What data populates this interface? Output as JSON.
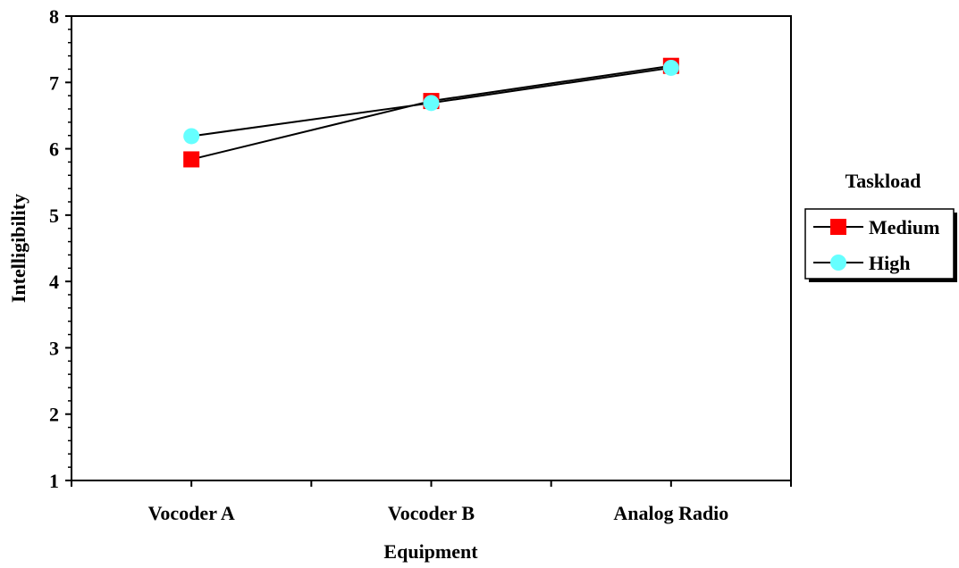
{
  "chart_data": {
    "type": "line",
    "xlabel": "Equipment",
    "ylabel": "Intelligibility",
    "ylim": [
      1,
      8
    ],
    "yticks": [
      "1",
      "2",
      "3",
      "4",
      "5",
      "6",
      "7",
      "8"
    ],
    "categories": [
      "Vocoder A",
      "Vocoder B",
      "Analog Radio"
    ],
    "series": [
      {
        "name": "Medium",
        "marker": "square",
        "color": "#ff0000",
        "values": [
          5.84,
          6.72,
          7.25
        ]
      },
      {
        "name": "High",
        "marker": "circle",
        "color": "#66ffff",
        "values": [
          6.19,
          6.69,
          7.22
        ]
      }
    ],
    "legend": {
      "title": "Taskload",
      "position": "right"
    },
    "grid": false
  }
}
